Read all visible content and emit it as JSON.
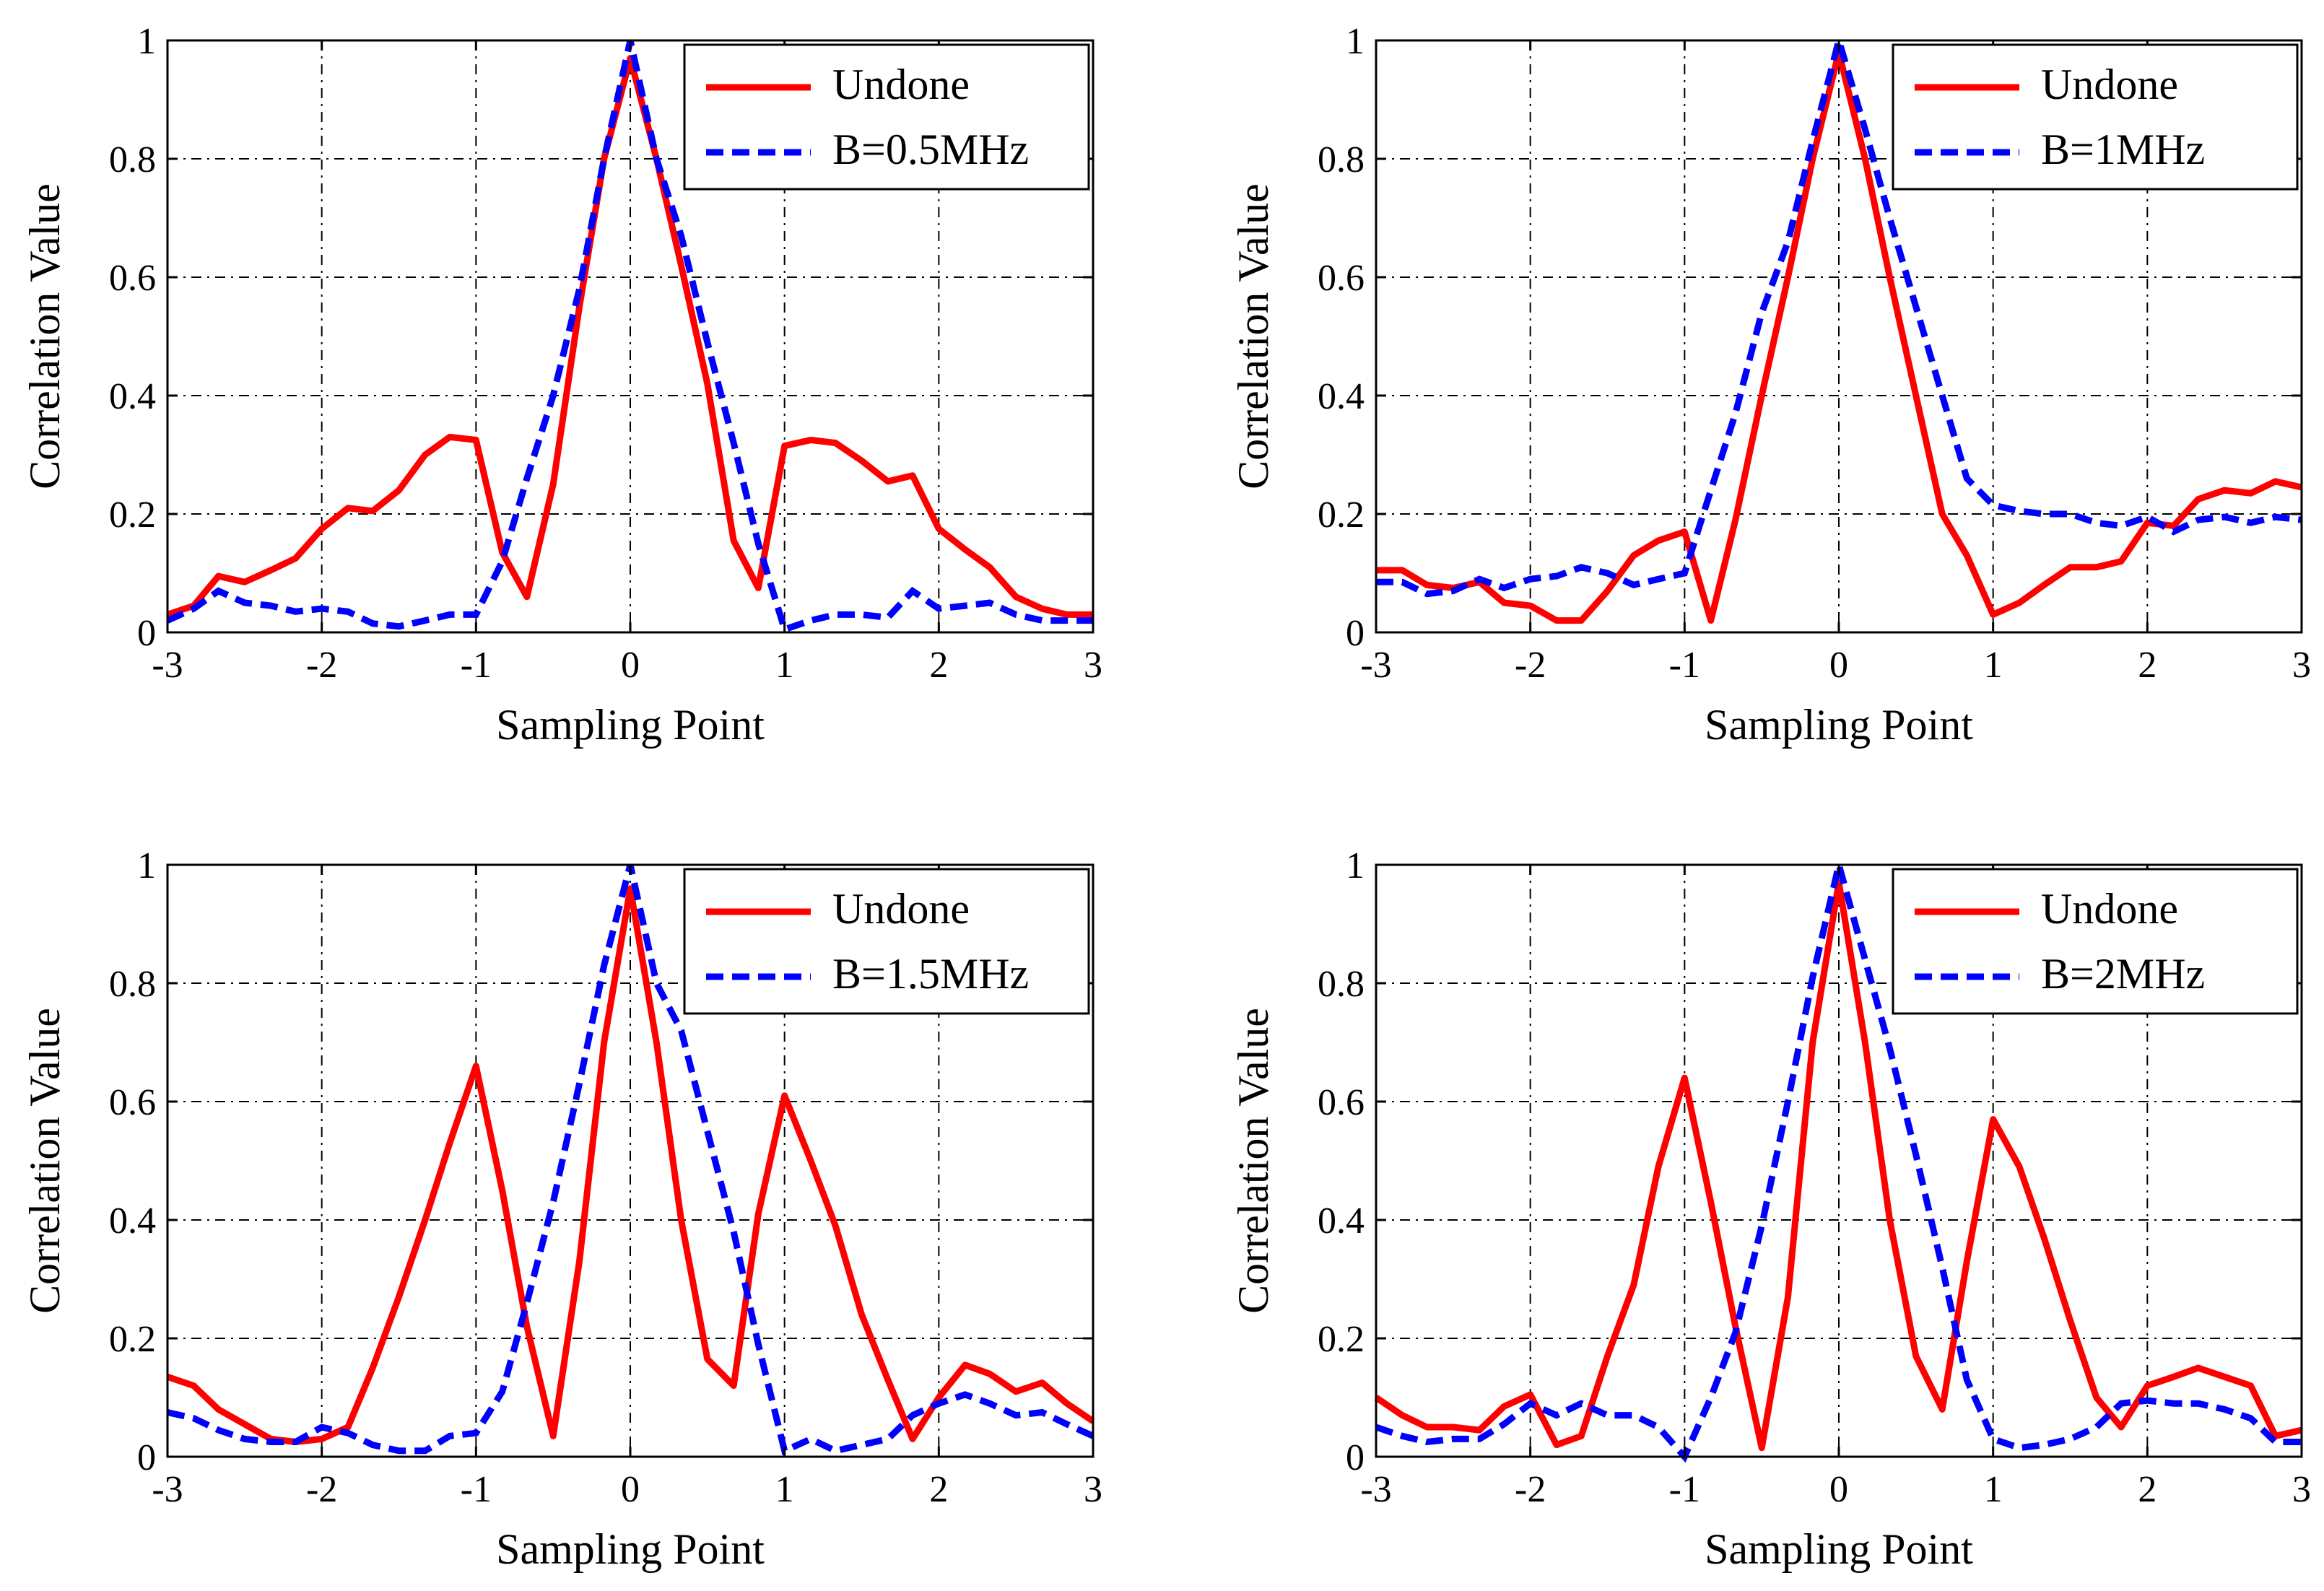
{
  "chart_data": [
    {
      "type": "line",
      "title": "",
      "xlabel": "Sampling Point",
      "ylabel": "Correlation Value",
      "xlim": [
        -3,
        3
      ],
      "ylim": [
        0,
        1
      ],
      "xticks": [
        "-3",
        "-2",
        "-1",
        "0",
        "1",
        "2",
        "3"
      ],
      "yticks": [
        "0",
        "0.2",
        "0.4",
        "0.6",
        "0.8",
        "1"
      ],
      "grid": true,
      "legend_position": "top-right",
      "series": [
        {
          "name": "Undone",
          "color": "#ff0000",
          "style": "solid",
          "x": [
            -3,
            -2.83,
            -2.67,
            -2.5,
            -2.33,
            -2.17,
            -2,
            -1.83,
            -1.67,
            -1.5,
            -1.33,
            -1.17,
            -1,
            -0.83,
            -0.67,
            -0.5,
            -0.33,
            -0.17,
            0,
            0.17,
            0.33,
            0.5,
            0.67,
            0.83,
            1,
            1.17,
            1.33,
            1.5,
            1.67,
            1.83,
            2,
            2.17,
            2.33,
            2.5,
            2.67,
            2.83,
            3
          ],
          "y": [
            0.03,
            0.045,
            0.095,
            0.085,
            0.105,
            0.125,
            0.175,
            0.21,
            0.205,
            0.24,
            0.3,
            0.33,
            0.325,
            0.135,
            0.06,
            0.25,
            0.55,
            0.8,
            0.97,
            0.8,
            0.62,
            0.42,
            0.155,
            0.075,
            0.315,
            0.325,
            0.32,
            0.29,
            0.255,
            0.265,
            0.175,
            0.14,
            0.11,
            0.06,
            0.04,
            0.03,
            0.03
          ]
        },
        {
          "name": "B=0.5MHz",
          "color": "#0000ff",
          "style": "dashed",
          "x": [
            -3,
            -2.83,
            -2.67,
            -2.5,
            -2.33,
            -2.17,
            -2,
            -1.83,
            -1.67,
            -1.5,
            -1.33,
            -1.17,
            -1,
            -0.83,
            -0.67,
            -0.5,
            -0.33,
            -0.17,
            0,
            0.17,
            0.33,
            0.5,
            0.67,
            0.83,
            1,
            1.17,
            1.33,
            1.5,
            1.67,
            1.83,
            2,
            2.17,
            2.33,
            2.5,
            2.67,
            2.83,
            3
          ],
          "y": [
            0.02,
            0.04,
            0.07,
            0.05,
            0.045,
            0.035,
            0.04,
            0.035,
            0.015,
            0.01,
            0.02,
            0.03,
            0.03,
            0.12,
            0.26,
            0.4,
            0.58,
            0.8,
            1.0,
            0.8,
            0.67,
            0.49,
            0.32,
            0.15,
            0.005,
            0.02,
            0.03,
            0.03,
            0.025,
            0.07,
            0.04,
            0.045,
            0.05,
            0.03,
            0.02,
            0.02,
            0.02
          ]
        }
      ]
    },
    {
      "type": "line",
      "title": "",
      "xlabel": "Sampling Point",
      "ylabel": "Correlation Value",
      "xlim": [
        -3,
        3
      ],
      "ylim": [
        0,
        1
      ],
      "xticks": [
        "-3",
        "-2",
        "-1",
        "0",
        "1",
        "2",
        "3"
      ],
      "yticks": [
        "0",
        "0.2",
        "0.4",
        "0.6",
        "0.8",
        "1"
      ],
      "grid": true,
      "legend_position": "top-right",
      "series": [
        {
          "name": "Undone",
          "color": "#ff0000",
          "style": "solid",
          "x": [
            -3,
            -2.83,
            -2.67,
            -2.5,
            -2.33,
            -2.17,
            -2,
            -1.83,
            -1.67,
            -1.5,
            -1.33,
            -1.17,
            -1,
            -0.83,
            -0.67,
            -0.5,
            -0.33,
            -0.17,
            0,
            0.17,
            0.33,
            0.5,
            0.67,
            0.83,
            1,
            1.17,
            1.33,
            1.5,
            1.67,
            1.83,
            2,
            2.17,
            2.33,
            2.5,
            2.67,
            2.83,
            3
          ],
          "y": [
            0.105,
            0.105,
            0.08,
            0.075,
            0.085,
            0.05,
            0.045,
            0.02,
            0.02,
            0.07,
            0.13,
            0.155,
            0.17,
            0.02,
            0.19,
            0.4,
            0.6,
            0.8,
            0.98,
            0.8,
            0.6,
            0.4,
            0.2,
            0.13,
            0.03,
            0.05,
            0.08,
            0.11,
            0.11,
            0.12,
            0.185,
            0.18,
            0.225,
            0.24,
            0.235,
            0.255,
            0.245
          ]
        },
        {
          "name": "B=1MHz",
          "color": "#0000ff",
          "style": "dashed",
          "x": [
            -3,
            -2.83,
            -2.67,
            -2.5,
            -2.33,
            -2.17,
            -2,
            -1.83,
            -1.67,
            -1.5,
            -1.33,
            -1.17,
            -1,
            -0.83,
            -0.67,
            -0.5,
            -0.33,
            -0.17,
            0,
            0.17,
            0.33,
            0.5,
            0.67,
            0.83,
            1,
            1.17,
            1.33,
            1.5,
            1.67,
            1.83,
            2,
            2.17,
            2.33,
            2.5,
            2.67,
            2.83,
            3
          ],
          "y": [
            0.085,
            0.085,
            0.065,
            0.07,
            0.09,
            0.075,
            0.09,
            0.095,
            0.11,
            0.1,
            0.08,
            0.09,
            0.1,
            0.24,
            0.37,
            0.54,
            0.66,
            0.83,
            1.0,
            0.85,
            0.7,
            0.55,
            0.4,
            0.26,
            0.215,
            0.205,
            0.2,
            0.2,
            0.185,
            0.18,
            0.195,
            0.17,
            0.19,
            0.195,
            0.185,
            0.195,
            0.19
          ]
        }
      ]
    },
    {
      "type": "line",
      "title": "",
      "xlabel": "Sampling Point",
      "ylabel": "Correlation Value",
      "xlim": [
        -3,
        3
      ],
      "ylim": [
        0,
        1
      ],
      "xticks": [
        "-3",
        "-2",
        "-1",
        "0",
        "1",
        "2",
        "3"
      ],
      "yticks": [
        "0",
        "0.2",
        "0.4",
        "0.6",
        "0.8",
        "1"
      ],
      "grid": true,
      "legend_position": "top-right",
      "series": [
        {
          "name": "Undone",
          "color": "#ff0000",
          "style": "solid",
          "x": [
            -3,
            -2.83,
            -2.67,
            -2.5,
            -2.33,
            -2.17,
            -2,
            -1.83,
            -1.67,
            -1.5,
            -1.33,
            -1.17,
            -1,
            -0.83,
            -0.67,
            -0.5,
            -0.33,
            -0.17,
            0,
            0.17,
            0.33,
            0.5,
            0.67,
            0.83,
            1,
            1.17,
            1.33,
            1.5,
            1.67,
            1.83,
            2,
            2.17,
            2.33,
            2.5,
            2.67,
            2.83,
            3
          ],
          "y": [
            0.135,
            0.12,
            0.08,
            0.055,
            0.03,
            0.025,
            0.03,
            0.05,
            0.15,
            0.27,
            0.4,
            0.53,
            0.66,
            0.45,
            0.22,
            0.035,
            0.33,
            0.7,
            0.96,
            0.7,
            0.4,
            0.165,
            0.12,
            0.41,
            0.61,
            0.5,
            0.39,
            0.24,
            0.13,
            0.03,
            0.1,
            0.155,
            0.14,
            0.11,
            0.125,
            0.09,
            0.06
          ]
        },
        {
          "name": "B=1.5MHz",
          "color": "#0000ff",
          "style": "dashed",
          "x": [
            -3,
            -2.83,
            -2.67,
            -2.5,
            -2.33,
            -2.17,
            -2,
            -1.83,
            -1.67,
            -1.5,
            -1.33,
            -1.17,
            -1,
            -0.83,
            -0.67,
            -0.5,
            -0.33,
            -0.17,
            0,
            0.17,
            0.33,
            0.5,
            0.67,
            0.83,
            1,
            1.17,
            1.33,
            1.5,
            1.67,
            1.83,
            2,
            2.17,
            2.33,
            2.5,
            2.67,
            2.83,
            3
          ],
          "y": [
            0.075,
            0.065,
            0.045,
            0.03,
            0.025,
            0.025,
            0.05,
            0.04,
            0.02,
            0.01,
            0.01,
            0.035,
            0.04,
            0.11,
            0.26,
            0.43,
            0.63,
            0.83,
            1.0,
            0.8,
            0.72,
            0.55,
            0.38,
            0.19,
            0.01,
            0.03,
            0.01,
            0.02,
            0.03,
            0.07,
            0.09,
            0.105,
            0.09,
            0.07,
            0.075,
            0.055,
            0.035
          ]
        }
      ]
    },
    {
      "type": "line",
      "title": "",
      "xlabel": "Sampling Point",
      "ylabel": "Correlation Value",
      "xlim": [
        -3,
        3
      ],
      "ylim": [
        0,
        1
      ],
      "xticks": [
        "-3",
        "-2",
        "-1",
        "0",
        "1",
        "2",
        "3"
      ],
      "yticks": [
        "0",
        "0.2",
        "0.4",
        "0.6",
        "0.8",
        "1"
      ],
      "grid": true,
      "legend_position": "top-right",
      "series": [
        {
          "name": "Undone",
          "color": "#ff0000",
          "style": "solid",
          "x": [
            -3,
            -2.83,
            -2.67,
            -2.5,
            -2.33,
            -2.17,
            -2,
            -1.83,
            -1.67,
            -1.5,
            -1.33,
            -1.17,
            -1,
            -0.83,
            -0.67,
            -0.5,
            -0.33,
            -0.17,
            0,
            0.17,
            0.33,
            0.5,
            0.67,
            0.83,
            1,
            1.17,
            1.33,
            1.5,
            1.67,
            1.83,
            2,
            2.17,
            2.33,
            2.5,
            2.67,
            2.83,
            3
          ],
          "y": [
            0.1,
            0.07,
            0.05,
            0.05,
            0.045,
            0.085,
            0.105,
            0.02,
            0.035,
            0.17,
            0.29,
            0.49,
            0.64,
            0.43,
            0.22,
            0.015,
            0.27,
            0.7,
            0.97,
            0.7,
            0.4,
            0.17,
            0.08,
            0.33,
            0.57,
            0.49,
            0.37,
            0.23,
            0.1,
            0.05,
            0.12,
            0.135,
            0.15,
            0.135,
            0.12,
            0.035,
            0.045
          ]
        },
        {
          "name": "B=2MHz",
          "color": "#0000ff",
          "style": "dashed",
          "x": [
            -3,
            -2.83,
            -2.67,
            -2.5,
            -2.33,
            -2.17,
            -2,
            -1.83,
            -1.67,
            -1.5,
            -1.33,
            -1.17,
            -1,
            -0.83,
            -0.67,
            -0.5,
            -0.33,
            -0.17,
            0,
            0.17,
            0.33,
            0.5,
            0.67,
            0.83,
            1,
            1.17,
            1.33,
            1.5,
            1.67,
            1.83,
            2,
            2.17,
            2.33,
            2.5,
            2.67,
            2.83,
            3
          ],
          "y": [
            0.05,
            0.035,
            0.025,
            0.03,
            0.03,
            0.055,
            0.09,
            0.07,
            0.09,
            0.07,
            0.07,
            0.05,
            0.0,
            0.1,
            0.21,
            0.39,
            0.6,
            0.81,
            1.0,
            0.84,
            0.69,
            0.51,
            0.32,
            0.13,
            0.03,
            0.015,
            0.02,
            0.03,
            0.05,
            0.09,
            0.095,
            0.09,
            0.09,
            0.08,
            0.065,
            0.025,
            0.025
          ]
        }
      ]
    }
  ]
}
